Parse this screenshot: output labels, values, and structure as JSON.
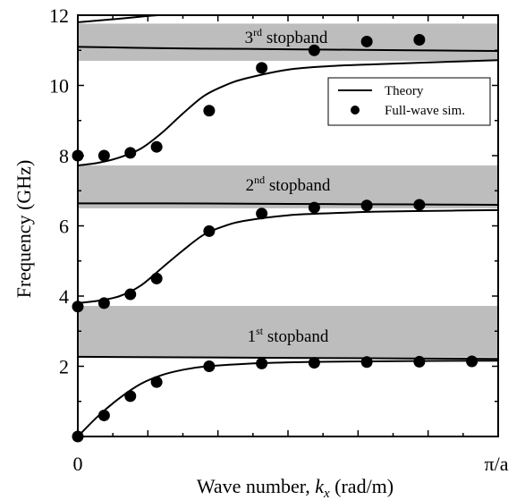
{
  "chart_data": {
    "type": "scatter",
    "xlabel_prefix": "Wave number, ",
    "xlabel_var": "k",
    "xlabel_sub": "x",
    "xlabel_unit": " (rad/m)",
    "ylabel": "Frequency (GHz)",
    "x_tick_labels": [
      "0",
      "π/a"
    ],
    "xlim": [
      0,
      1
    ],
    "ylim": [
      0,
      12
    ],
    "y_ticks": [
      2,
      4,
      6,
      8,
      10,
      12
    ],
    "legend": {
      "position": "top-right",
      "theory_label": "Theory",
      "sim_label": "Full-wave sim."
    },
    "stopbands": [
      {
        "num": "1",
        "sup": "st",
        "word": " stopband",
        "range": [
          2.25,
          3.72
        ]
      },
      {
        "num": "2",
        "sup": "nd",
        "word": " stopband",
        "range": [
          6.5,
          7.72
        ]
      },
      {
        "num": "3",
        "sup": "rd",
        "word": " stopband",
        "range": [
          10.7,
          11.76
        ]
      }
    ],
    "colors": {
      "stopband": "#bdbdbd",
      "line": "#000000",
      "marker": "#000000"
    },
    "series": [
      {
        "name": "Theory",
        "kind": "line",
        "curves": [
          [
            [
              0,
              0
            ],
            [
              0.05,
              0.6
            ],
            [
              0.1,
              1.1
            ],
            [
              0.15,
              1.5
            ],
            [
              0.2,
              1.75
            ],
            [
              0.25,
              1.9
            ],
            [
              0.3,
              1.99
            ],
            [
              0.4,
              2.07
            ],
            [
              0.5,
              2.11
            ],
            [
              0.6,
              2.13
            ],
            [
              0.7,
              2.14
            ],
            [
              0.8,
              2.15
            ],
            [
              1.0,
              2.16
            ]
          ],
          [
            [
              0,
              3.8
            ],
            [
              0.05,
              3.87
            ],
            [
              0.1,
              4.0
            ],
            [
              0.15,
              4.3
            ],
            [
              0.2,
              4.8
            ],
            [
              0.25,
              5.3
            ],
            [
              0.3,
              5.75
            ],
            [
              0.35,
              6.0
            ],
            [
              0.4,
              6.15
            ],
            [
              0.5,
              6.3
            ],
            [
              0.6,
              6.36
            ],
            [
              0.7,
              6.4
            ],
            [
              0.8,
              6.42
            ],
            [
              1.0,
              6.45
            ]
          ],
          [
            [
              0,
              7.72
            ],
            [
              0.05,
              7.8
            ],
            [
              0.1,
              7.95
            ],
            [
              0.15,
              8.2
            ],
            [
              0.2,
              8.65
            ],
            [
              0.25,
              9.2
            ],
            [
              0.3,
              9.7
            ],
            [
              0.35,
              10.0
            ],
            [
              0.4,
              10.2
            ],
            [
              0.5,
              10.45
            ],
            [
              0.6,
              10.55
            ],
            [
              0.7,
              10.6
            ],
            [
              0.8,
              10.64
            ],
            [
              1.0,
              10.72
            ]
          ],
          [
            [
              0,
              6.64
            ],
            [
              0.2,
              6.64
            ],
            [
              0.4,
              6.63
            ],
            [
              0.6,
              6.62
            ],
            [
              0.8,
              6.61
            ],
            [
              1.0,
              6.6
            ]
          ],
          [
            [
              0,
              11.1
            ],
            [
              0.2,
              11.06
            ],
            [
              0.4,
              11.04
            ],
            [
              0.6,
              11.02
            ],
            [
              0.8,
              11.0
            ],
            [
              1.0,
              10.98
            ]
          ],
          [
            [
              0,
              11.8
            ],
            [
              0.05,
              11.85
            ],
            [
              0.1,
              11.9
            ],
            [
              0.15,
              11.96
            ],
            [
              0.19,
              12.0
            ]
          ],
          [
            [
              0,
              2.27
            ],
            [
              0.5,
              2.24
            ],
            [
              1.0,
              2.21
            ]
          ]
        ]
      },
      {
        "name": "Full-wave sim.",
        "kind": "scatter",
        "points": [
          [
            0.0,
            0.0
          ],
          [
            0.0625,
            0.6
          ],
          [
            0.125,
            1.15
          ],
          [
            0.1875,
            1.55
          ],
          [
            0.3125,
            2.0
          ],
          [
            0.4375,
            2.08
          ],
          [
            0.5625,
            2.1
          ],
          [
            0.6875,
            2.12
          ],
          [
            0.8125,
            2.13
          ],
          [
            0.9375,
            2.14
          ],
          [
            0.0,
            3.7
          ],
          [
            0.0625,
            3.8
          ],
          [
            0.125,
            4.05
          ],
          [
            0.1875,
            4.5
          ],
          [
            0.3125,
            5.85
          ],
          [
            0.4375,
            6.35
          ],
          [
            0.5625,
            6.52
          ],
          [
            0.6875,
            6.58
          ],
          [
            0.8125,
            6.6
          ],
          [
            0.0,
            8.0
          ],
          [
            0.0625,
            8.0
          ],
          [
            0.125,
            8.08
          ],
          [
            0.1875,
            8.25
          ],
          [
            0.3125,
            9.28
          ],
          [
            0.4375,
            10.5
          ],
          [
            0.5625,
            11.0
          ],
          [
            0.6875,
            11.25
          ],
          [
            0.8125,
            11.3
          ]
        ]
      }
    ]
  }
}
